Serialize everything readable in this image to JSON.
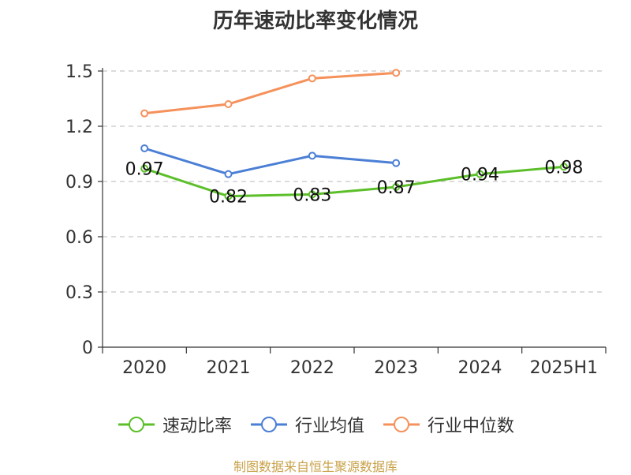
{
  "chart_data": {
    "type": "line",
    "title": "历年速动比率变化情况",
    "categories": [
      "2020",
      "2021",
      "2022",
      "2023",
      "2024",
      "2025H1"
    ],
    "ylim": [
      0,
      1.5
    ],
    "yticks": [
      "0",
      "0.3",
      "0.6",
      "0.9",
      "1.2",
      "1.5"
    ],
    "grid": true,
    "legend_position": "bottom",
    "series": [
      {
        "name": "速动比率",
        "color": "#5cbf2a",
        "values": [
          0.97,
          0.82,
          0.83,
          0.87,
          0.94,
          0.98
        ],
        "labels": [
          "0.97",
          "0.82",
          "0.83",
          "0.87",
          "0.94",
          "0.98"
        ]
      },
      {
        "name": "行业均值",
        "color": "#4b7fd6",
        "values": [
          1.08,
          0.94,
          1.04,
          1.0,
          null,
          null
        ]
      },
      {
        "name": "行业中位数",
        "color": "#f5915a",
        "values": [
          1.27,
          1.32,
          1.46,
          1.49,
          null,
          null
        ]
      }
    ]
  },
  "footer": {
    "source": "制图数据来自恒生聚源数据库"
  }
}
